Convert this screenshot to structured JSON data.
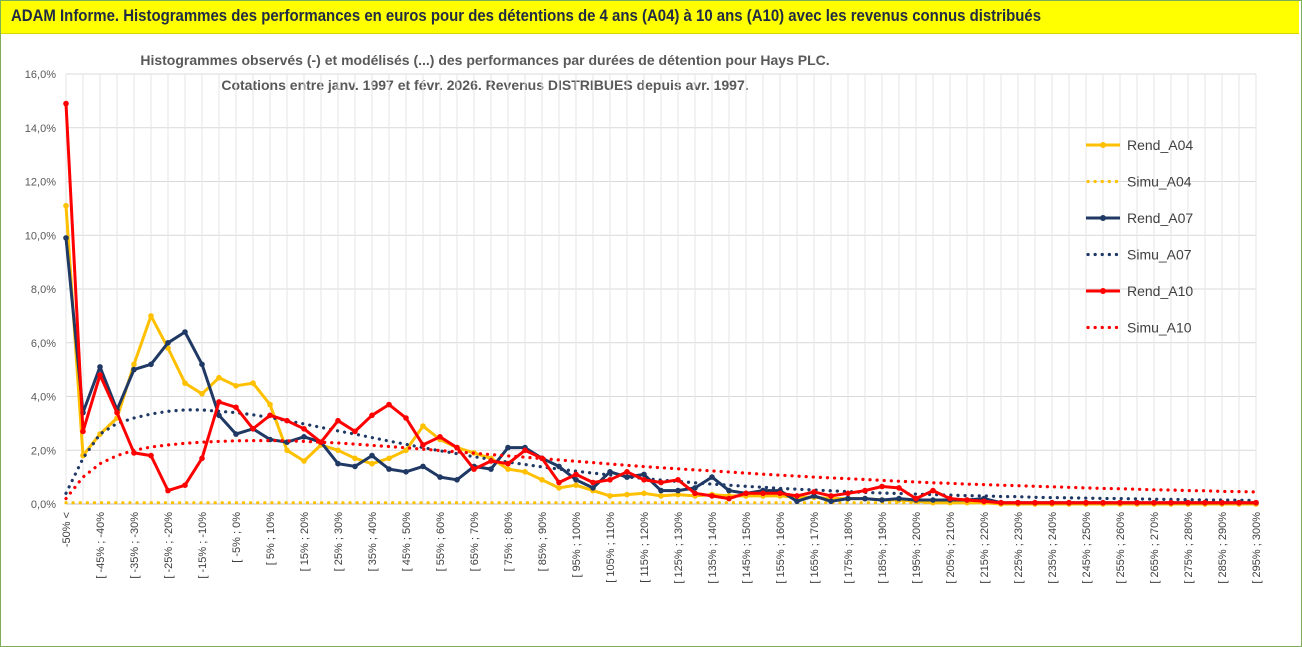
{
  "banner": {
    "title": "ADAM Informe. Histogrammes des performances en euros pour des détentions de 4 ans (A04) à 10 ans (A10) avec les revenus connus distribués"
  },
  "chart_data": {
    "type": "line",
    "title_lines": [
      "Histogrammes observés (-) et modélisés (...) des performances par durées de détention pour Hays PLC.",
      "Cotations entre janv. 1997 et févr. 2026. Revenus DISTRIBUES depuis avr. 1997."
    ],
    "ylim": [
      0,
      16
    ],
    "yticks": [
      "0,0%",
      "2,0%",
      "4,0%",
      "6,0%",
      "8,0%",
      "10,0%",
      "12,0%",
      "14,0%",
      "16,0%"
    ],
    "grid": true,
    "legend_position": "right",
    "categories": [
      "-50% <",
      "[ -50% ; -45%",
      "[ -45% ; -40%",
      "[ -40% ; -35%",
      "[ -35% ; -30%",
      "[ -30% ; -25%",
      "[ -25% ; -20%",
      "[ -20% ; -15%",
      "[ -15% ; -10%",
      "[ -10% ; -5%",
      "[ -5% ; 0%",
      "[ 0% ; 5%",
      "[ 5% ; 10%",
      "[ 10% ; 15%",
      "[ 15% ; 20%",
      "[ 20% ; 25%",
      "[ 25% ; 30%",
      "[ 30% ; 35%",
      "[ 35% ; 40%",
      "[ 40% ; 45%",
      "[ 45% ; 50%",
      "[ 50% ; 55%",
      "[ 55% ; 60%",
      "[ 60% ; 65%",
      "[ 65% ; 70%",
      "[ 70% ; 75%",
      "[ 75% ; 80%",
      "[ 80% ; 85%",
      "[ 85% ; 90%",
      "[ 90% ; 95%",
      "[ 95% ; 100%",
      "[ 100% ; 105%",
      "[ 105% ; 110%",
      "[ 110% ; 115%",
      "[ 115% ; 120%",
      "[ 120% ; 125%",
      "[ 125% ; 130%",
      "[ 130% ; 135%",
      "[ 135% ; 140%",
      "[ 140% ; 145%",
      "[ 145% ; 150%",
      "[ 150% ; 155%",
      "[ 155% ; 160%",
      "[ 160% ; 165%",
      "[ 165% ; 170%",
      "[ 170% ; 175%",
      "[ 175% ; 180%",
      "[ 180% ; 185%",
      "[ 185% ; 190%",
      "[ 190% ; 195%",
      "[ 195% ; 200%",
      "[ 200% ; 205%",
      "[ 205% ; 210%",
      "[ 210% ; 215%",
      "[ 215% ; 220%",
      "[ 220% ; 225%",
      "[ 225% ; 230%",
      "[ 230% ; 235%",
      "[ 235% ; 240%",
      "[ 240% ; 245%",
      "[ 245% ; 250%",
      "[ 250% ; 255%",
      "[ 255% ; 260%",
      "[ 260% ; 265%",
      "[ 265% ; 270%",
      "[ 270% ; 275%",
      "[ 275% ; 280%",
      "[ 280% ; 285%",
      "[ 285% ; 290%",
      "[ 290% ; 295%",
      "[ 295% ; 300%"
    ],
    "label_every": 2,
    "series": [
      {
        "name": "Rend_A04",
        "style": "solid",
        "color": "#ffc000",
        "values": [
          11.1,
          1.8,
          2.6,
          3.2,
          5.2,
          7.0,
          5.8,
          4.5,
          4.1,
          4.7,
          4.4,
          4.5,
          3.7,
          2.0,
          1.6,
          2.2,
          2.0,
          1.7,
          1.5,
          1.7,
          2.0,
          2.9,
          2.4,
          2.1,
          1.9,
          1.7,
          1.3,
          1.2,
          0.9,
          0.6,
          0.7,
          0.5,
          0.3,
          0.35,
          0.4,
          0.3,
          0.35,
          0.3,
          0.35,
          0.3,
          0.3,
          0.3,
          0.3,
          0.25,
          0.25,
          0.2,
          0.2,
          0.2,
          0.15,
          0.15,
          0.1,
          0.05,
          0.05,
          0.05,
          0.05,
          0,
          0,
          0,
          0,
          0,
          0,
          0,
          0,
          0,
          0,
          0,
          0,
          0,
          0,
          0,
          0
        ]
      },
      {
        "name": "Simu_A04",
        "style": "dotted",
        "color": "#ffc000",
        "values": [
          0.05,
          0.05,
          0.05,
          0.05,
          0.05,
          0.05,
          0.05,
          0.05,
          0.05,
          0.05,
          0.05,
          0.05,
          0.05,
          0.05,
          0.05,
          0.05,
          0.05,
          0.05,
          0.05,
          0.05,
          0.05,
          0.05,
          0.05,
          0.05,
          0.05,
          0.05,
          0.05,
          0.05,
          0.05,
          0.05,
          0.05,
          0.05,
          0.05,
          0.05,
          0.05,
          0.05,
          0.05,
          0.05,
          0.05,
          0.05,
          0.05,
          0.05,
          0.05,
          0.05,
          0.05,
          0.05,
          0.05,
          0.05,
          0.05,
          0.05,
          0.05,
          0.05,
          0.05,
          0.05,
          0.05,
          0.05,
          0.05,
          0.05,
          0.05,
          0.05,
          0.05,
          0.05,
          0.05,
          0.05,
          0.05,
          0.05,
          0.05,
          0.05,
          0.05,
          0.05,
          0.05
        ]
      },
      {
        "name": "Rend_A07",
        "style": "solid",
        "color": "#1f3864",
        "values": [
          9.9,
          3.4,
          5.1,
          3.5,
          5.0,
          5.2,
          6.0,
          6.4,
          5.2,
          3.3,
          2.6,
          2.8,
          2.4,
          2.3,
          2.5,
          2.3,
          1.5,
          1.4,
          1.8,
          1.3,
          1.2,
          1.4,
          1.0,
          0.9,
          1.4,
          1.3,
          2.1,
          2.1,
          1.7,
          1.4,
          0.9,
          0.6,
          1.2,
          1.0,
          1.1,
          0.5,
          0.5,
          0.6,
          1.0,
          0.5,
          0.4,
          0.5,
          0.5,
          0.1,
          0.3,
          0.1,
          0.2,
          0.2,
          0.15,
          0.2,
          0.15,
          0.15,
          0.15,
          0.15,
          0.2,
          0.05,
          0.05,
          0.05,
          0.05,
          0.05,
          0.05,
          0.05,
          0.05,
          0.05,
          0.05,
          0.05,
          0.05,
          0.05,
          0.05,
          0.05,
          0.05
        ]
      },
      {
        "name": "Simu_A07",
        "style": "dotted",
        "color": "#1f3864",
        "values": [
          0.4,
          1.7,
          2.6,
          3.0,
          3.2,
          3.35,
          3.45,
          3.5,
          3.5,
          3.45,
          3.4,
          3.32,
          3.22,
          3.1,
          2.98,
          2.85,
          2.72,
          2.6,
          2.47,
          2.34,
          2.22,
          2.1,
          1.98,
          1.87,
          1.76,
          1.66,
          1.56,
          1.47,
          1.38,
          1.3,
          1.22,
          1.15,
          1.08,
          1.01,
          0.95,
          0.89,
          0.84,
          0.79,
          0.74,
          0.7,
          0.66,
          0.62,
          0.58,
          0.55,
          0.52,
          0.49,
          0.46,
          0.43,
          0.41,
          0.39,
          0.37,
          0.35,
          0.33,
          0.31,
          0.3,
          0.28,
          0.27,
          0.25,
          0.24,
          0.23,
          0.22,
          0.21,
          0.2,
          0.19,
          0.18,
          0.17,
          0.16,
          0.15,
          0.15,
          0.14,
          0.13
        ]
      },
      {
        "name": "Rend_A10",
        "style": "solid",
        "color": "#ff0000",
        "values": [
          14.9,
          2.7,
          4.8,
          3.4,
          1.9,
          1.8,
          0.5,
          0.7,
          1.7,
          3.8,
          3.6,
          2.8,
          3.3,
          3.1,
          2.8,
          2.3,
          3.1,
          2.7,
          3.3,
          3.7,
          3.2,
          2.2,
          2.5,
          2.1,
          1.3,
          1.6,
          1.5,
          2.0,
          1.7,
          0.8,
          1.1,
          0.8,
          0.9,
          1.2,
          0.9,
          0.8,
          0.9,
          0.4,
          0.3,
          0.2,
          0.4,
          0.4,
          0.4,
          0.3,
          0.45,
          0.3,
          0.4,
          0.5,
          0.65,
          0.6,
          0.2,
          0.5,
          0.2,
          0.15,
          0.1,
          0.05,
          0.05,
          0.05,
          0.05,
          0.05,
          0.05,
          0.05,
          0.05,
          0.05,
          0.05,
          0.05,
          0.05,
          0.05,
          0.05,
          0.05,
          0.05
        ]
      },
      {
        "name": "Simu_A10",
        "style": "dotted",
        "color": "#ff0000",
        "values": [
          0.2,
          1.0,
          1.5,
          1.8,
          2.0,
          2.12,
          2.2,
          2.26,
          2.3,
          2.33,
          2.35,
          2.36,
          2.36,
          2.35,
          2.33,
          2.3,
          2.27,
          2.23,
          2.18,
          2.14,
          2.09,
          2.04,
          1.99,
          1.94,
          1.89,
          1.84,
          1.79,
          1.74,
          1.69,
          1.64,
          1.59,
          1.54,
          1.49,
          1.44,
          1.39,
          1.35,
          1.31,
          1.27,
          1.23,
          1.19,
          1.15,
          1.11,
          1.07,
          1.04,
          1.0,
          0.97,
          0.94,
          0.91,
          0.88,
          0.85,
          0.82,
          0.79,
          0.77,
          0.74,
          0.72,
          0.7,
          0.68,
          0.66,
          0.64,
          0.62,
          0.6,
          0.58,
          0.57,
          0.55,
          0.53,
          0.52,
          0.5,
          0.49,
          0.47,
          0.46,
          0.45
        ]
      }
    ]
  }
}
